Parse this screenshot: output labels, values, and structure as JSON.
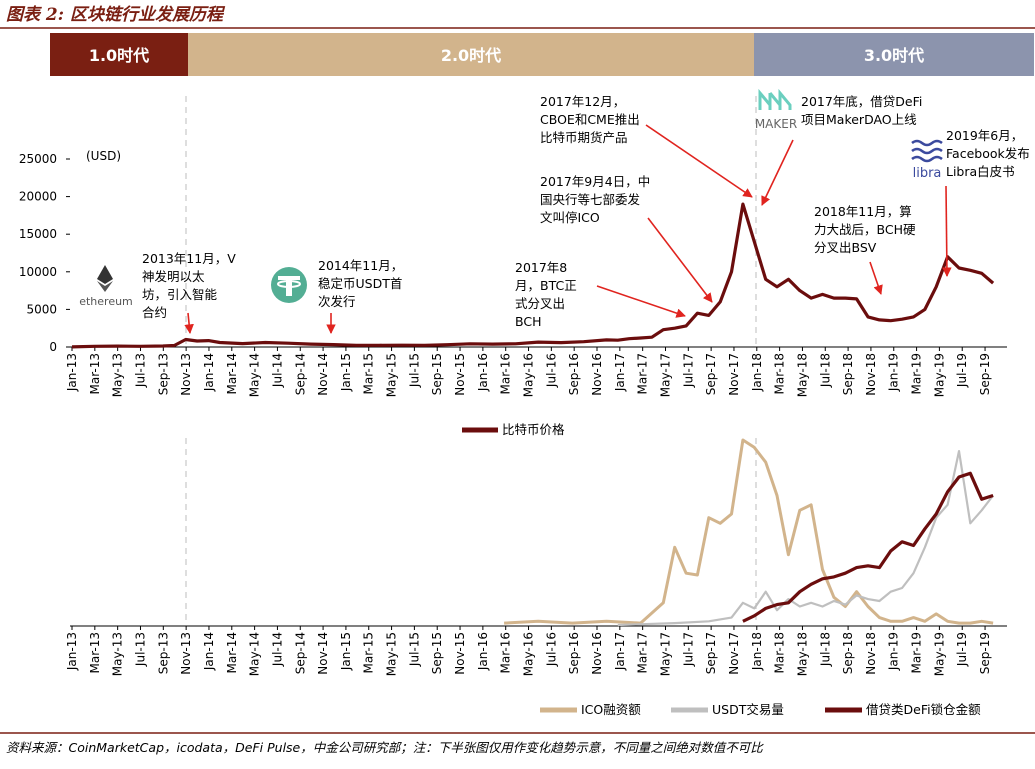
{
  "figure": {
    "title": "图表 2: 区块链行业发展历程",
    "source": "资料来源：CoinMarketCap，icodata，DeFi Pulse，中金公司研究部；注：下半张图仅用作变化趋势示意，不同量之间绝对数值不可比"
  },
  "colors": {
    "title": "#7a1f12",
    "rule": "#7a1f12",
    "btc": "#6b0d0d",
    "ico": "#d2b48c",
    "usdt": "#bfbfbf",
    "defi": "#6b0d0d",
    "era1": "#7a1f12",
    "era2": "#d2b48c",
    "era3": "#8c94ad",
    "ethereum_logo": "#333333",
    "tether_logo": "#53ae94",
    "maker_logo": "#6bcfbf",
    "libra_logo": "#3b4a9e"
  },
  "eras": [
    {
      "label": "1.0时代"
    },
    {
      "label": "2.0时代"
    },
    {
      "label": "3.0时代"
    }
  ],
  "chart_data": [
    {
      "type": "line",
      "unit": "(USD)",
      "ylim": [
        0,
        25000
      ],
      "yticks": [
        "0",
        "5000",
        "10000",
        "15000",
        "20000",
        "25000"
      ],
      "xticks": [
        "Jan-13",
        "Mar-13",
        "May-13",
        "Jul-13",
        "Sep-13",
        "Nov-13",
        "Jan-14",
        "Mar-14",
        "May-14",
        "Jul-14",
        "Sep-14",
        "Nov-14",
        "Jan-15",
        "Mar-15",
        "May-15",
        "Jul-15",
        "Sep-15",
        "Nov-15",
        "Jan-16",
        "Mar-16",
        "May-16",
        "Jul-16",
        "Sep-16",
        "Nov-16",
        "Jan-17",
        "Mar-17",
        "May-17",
        "Jul-17",
        "Sep-17",
        "Nov-17",
        "Jan-18",
        "Mar-18",
        "May-18",
        "Jul-18",
        "Sep-18",
        "Nov-18",
        "Jan-19",
        "Mar-19",
        "May-19",
        "Jul-19",
        "Sep-19"
      ],
      "series": [
        {
          "name": "比特币价格",
          "x": [
            "2013-01",
            "2013-03",
            "2013-05",
            "2013-07",
            "2013-09",
            "2013-10",
            "2013-11",
            "2013-12",
            "2014-01",
            "2014-02",
            "2014-04",
            "2014-06",
            "2014-08",
            "2014-10",
            "2014-12",
            "2015-02",
            "2015-04",
            "2015-06",
            "2015-08",
            "2015-10",
            "2015-12",
            "2016-02",
            "2016-04",
            "2016-06",
            "2016-08",
            "2016-10",
            "2016-12",
            "2017-01",
            "2017-02",
            "2017-03",
            "2017-04",
            "2017-05",
            "2017-06",
            "2017-07",
            "2017-08",
            "2017-09",
            "2017-10",
            "2017-11",
            "2017-12",
            "2018-01",
            "2018-02",
            "2018-03",
            "2018-04",
            "2018-05",
            "2018-06",
            "2018-07",
            "2018-08",
            "2018-09",
            "2018-10",
            "2018-11",
            "2018-12",
            "2019-01",
            "2019-02",
            "2019-03",
            "2019-04",
            "2019-05",
            "2019-06",
            "2019-07",
            "2019-08",
            "2019-09",
            "2019-10"
          ],
          "y": [
            15,
            90,
            120,
            90,
            130,
            200,
            1000,
            800,
            850,
            600,
            450,
            600,
            500,
            380,
            320,
            230,
            230,
            240,
            230,
            300,
            430,
            380,
            420,
            650,
            580,
            700,
            950,
            900,
            1100,
            1200,
            1300,
            2300,
            2500,
            2800,
            4500,
            4200,
            6000,
            10000,
            19000,
            14000,
            9000,
            8000,
            9000,
            7500,
            6500,
            7000,
            6500,
            6500,
            6400,
            4000,
            3600,
            3500,
            3700,
            4000,
            5000,
            8000,
            12000,
            10500,
            10200,
            9800,
            8500
          ]
        }
      ],
      "annotations": [
        {
          "text": "2013年11月，V神发明以太坊，引入智能合约",
          "x": "2013-11"
        },
        {
          "text": "2014年11月，稳定币USDT首次发行",
          "x": "2014-11"
        },
        {
          "text": "2017年8月，BTC正式分叉出BCH",
          "x": "2017-08"
        },
        {
          "text": "2017年9月4日，中国央行等七部委发文叫停ICO",
          "x": "2017-09"
        },
        {
          "text": "2017年12月，CBOE和CME推出比特币期货产品",
          "x": "2017-12"
        },
        {
          "text": "2017年底，借贷DeFi项目MakerDAO上线",
          "x": "2017-12"
        },
        {
          "text": "2018年11月，算力大战后，BCH硬分叉出BSV",
          "x": "2018-11"
        },
        {
          "text": "2019年6月，Facebook发布Libra白皮书",
          "x": "2019-06"
        }
      ],
      "logos": {
        "ethereum": "ethereum",
        "maker": "MAKER",
        "libra": "libra"
      }
    },
    {
      "type": "line",
      "xticks": [
        "Jan-13",
        "Mar-13",
        "May-13",
        "Jul-13",
        "Sep-13",
        "Nov-13",
        "Jan-14",
        "Mar-14",
        "May-14",
        "Jul-14",
        "Sep-14",
        "Nov-14",
        "Jan-15",
        "Mar-15",
        "May-15",
        "Jul-15",
        "Sep-15",
        "Nov-15",
        "Jan-16",
        "Mar-16",
        "May-16",
        "Jul-16",
        "Sep-16",
        "Nov-16",
        "Jan-17",
        "Mar-17",
        "May-17",
        "Jul-17",
        "Sep-17",
        "Nov-17",
        "Jan-18",
        "Mar-18",
        "May-18",
        "Jul-18",
        "Sep-18",
        "Nov-18",
        "Jan-19",
        "Mar-19",
        "May-19",
        "Jul-19",
        "Sep-19"
      ],
      "ylim": [
        0,
        100
      ],
      "series": [
        {
          "name": "ICO融资额",
          "x": [
            "2016-03",
            "2016-06",
            "2016-09",
            "2016-12",
            "2017-03",
            "2017-05",
            "2017-06",
            "2017-07",
            "2017-08",
            "2017-09",
            "2017-10",
            "2017-11",
            "2017-12",
            "2018-01",
            "2018-02",
            "2018-03",
            "2018-04",
            "2018-05",
            "2018-06",
            "2018-07",
            "2018-08",
            "2018-09",
            "2018-10",
            "2018-11",
            "2018-12",
            "2019-01",
            "2019-02",
            "2019-03",
            "2019-04",
            "2019-05",
            "2019-06",
            "2019-07",
            "2019-08",
            "2019-09",
            "2019-10"
          ],
          "y": [
            1,
            2,
            1,
            2,
            1,
            12,
            42,
            28,
            27,
            58,
            55,
            60,
            100,
            96,
            88,
            70,
            38,
            62,
            65,
            30,
            15,
            10,
            18,
            10,
            4,
            2,
            2,
            4,
            2,
            6,
            2,
            1,
            1,
            2,
            1
          ]
        },
        {
          "name": "USDT交易量",
          "x": [
            "2017-01",
            "2017-06",
            "2017-09",
            "2017-11",
            "2017-12",
            "2018-01",
            "2018-02",
            "2018-03",
            "2018-04",
            "2018-05",
            "2018-06",
            "2018-07",
            "2018-08",
            "2018-09",
            "2018-10",
            "2018-11",
            "2018-12",
            "2019-01",
            "2019-02",
            "2019-03",
            "2019-04",
            "2019-05",
            "2019-06",
            "2019-07",
            "2019-08",
            "2019-09",
            "2019-10"
          ],
          "y": [
            0,
            1,
            2,
            4,
            12,
            9,
            18,
            8,
            14,
            10,
            12,
            10,
            13,
            11,
            16,
            14,
            13,
            18,
            20,
            28,
            42,
            58,
            65,
            94,
            55,
            62,
            70
          ]
        },
        {
          "name": "借贷类DeFi锁仓金额",
          "x": [
            "2017-12",
            "2018-01",
            "2018-02",
            "2018-03",
            "2018-04",
            "2018-05",
            "2018-06",
            "2018-07",
            "2018-08",
            "2018-09",
            "2018-10",
            "2018-11",
            "2018-12",
            "2019-01",
            "2019-02",
            "2019-03",
            "2019-04",
            "2019-05",
            "2019-06",
            "2019-07",
            "2019-08",
            "2019-09",
            "2019-10"
          ],
          "y": [
            2,
            5,
            9,
            11,
            12,
            18,
            22,
            25,
            26,
            28,
            31,
            32,
            31,
            40,
            45,
            43,
            52,
            60,
            72,
            80,
            82,
            68,
            70
          ]
        }
      ]
    }
  ]
}
